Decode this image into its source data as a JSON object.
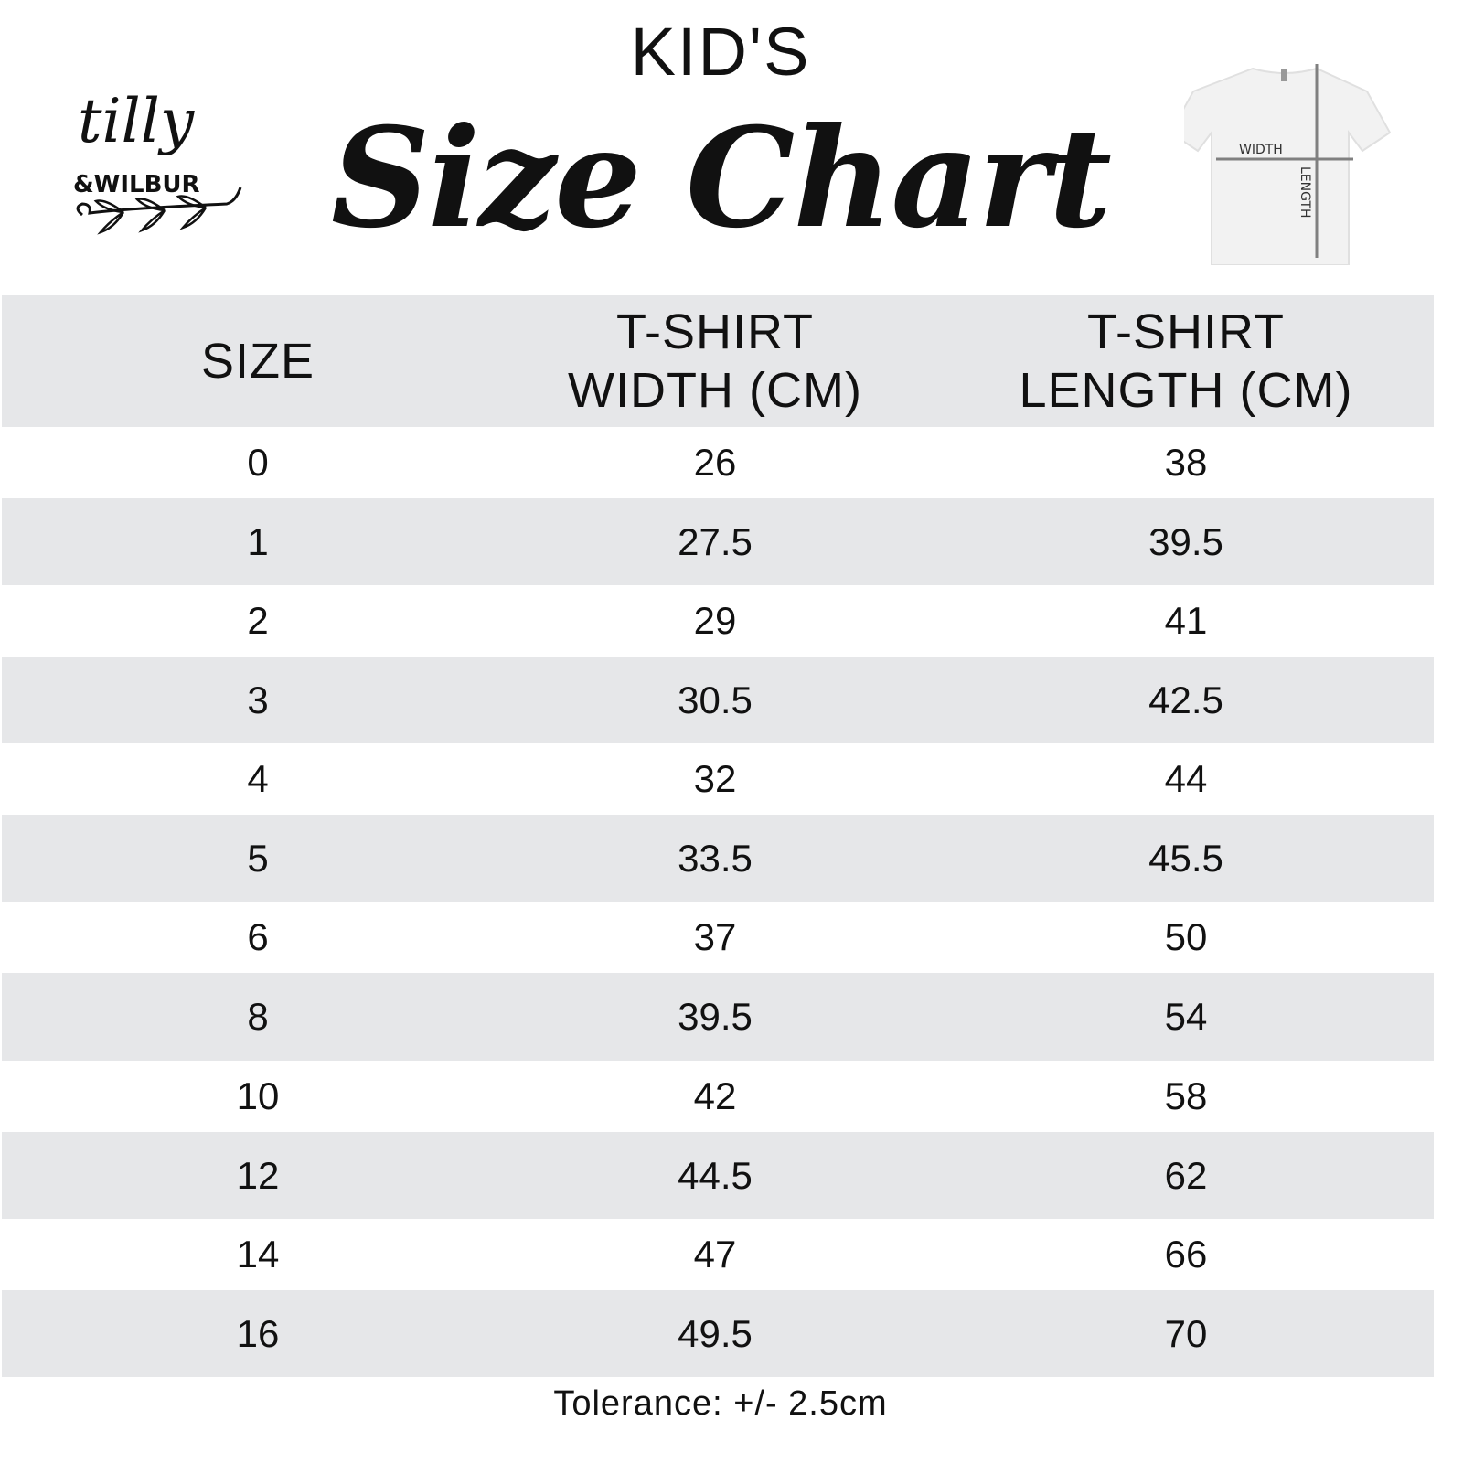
{
  "header": {
    "kids": "KID'S",
    "title": "Size Chart",
    "logo_text": "tilly & WILBUR",
    "diagram": {
      "width_label": "WIDTH",
      "length_label": "LENGTH"
    }
  },
  "table": {
    "columns": [
      "SIZE",
      "T-SHIRT WIDTH (CM)",
      "T-SHIRT LENGTH (CM)"
    ],
    "rows": [
      [
        "0",
        "26",
        "38"
      ],
      [
        "1",
        "27.5",
        "39.5"
      ],
      [
        "2",
        "29",
        "41"
      ],
      [
        "3",
        "30.5",
        "42.5"
      ],
      [
        "4",
        "32",
        "44"
      ],
      [
        "5",
        "33.5",
        "45.5"
      ],
      [
        "6",
        "37",
        "50"
      ],
      [
        "8",
        "39.5",
        "54"
      ],
      [
        "10",
        "42",
        "58"
      ],
      [
        "12",
        "44.5",
        "62"
      ],
      [
        "14",
        "47",
        "66"
      ],
      [
        "16",
        "49.5",
        "70"
      ]
    ]
  },
  "footer": {
    "tolerance": "Tolerance: +/- 2.5cm"
  },
  "colors": {
    "stripe": "#e6e7e9",
    "text": "#111111"
  }
}
